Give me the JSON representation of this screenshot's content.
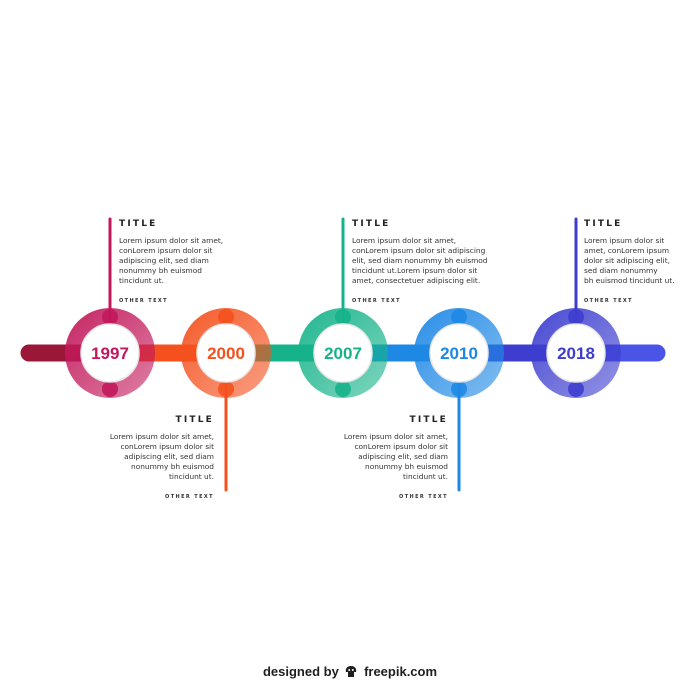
{
  "colors": {
    "step_1": "#c2185b",
    "step_2": "#f4511e",
    "step_3": "#16b38a",
    "step_4": "#1e88e5",
    "step_5": "#3d3ecf",
    "bar_left": "#9a1738",
    "bar_right": "#4a55e8"
  },
  "timeline": {
    "steps": [
      {
        "year": "1997",
        "title": "TITLE",
        "body": "Lorem ipsum dolor sit amet,\nconLorem ipsum dolor sit\nadipiscing elit, sed diam\nnonummy bh euismod\ntincidunt ut.",
        "other": "OTHER TEXT"
      },
      {
        "year": "2000",
        "title": "TITLE",
        "body": "Lorem ipsum dolor sit amet,\nconLorem ipsum dolor sit\nadipiscing elit, sed diam\nnonummy bh euismod\ntincidunt ut.",
        "other": "OTHER TEXT"
      },
      {
        "year": "2007",
        "title": "TITLE",
        "body": "Lorem ipsum dolor sit amet,\nconLorem ipsum dolor sit adipiscing\nelit, sed diam nonummy bh euismod\ntincidunt ut.Lorem ipsum dolor sit\namet, consectetuer adipiscing elit.",
        "other": "OTHER TEXT"
      },
      {
        "year": "2010",
        "title": "TITLE",
        "body": "Lorem ipsum dolor sit amet,\nconLorem ipsum dolor sit\nadipiscing elit, sed diam\nnonummy bh euismod\ntincidunt ut.",
        "other": "OTHER TEXT"
      },
      {
        "year": "2018",
        "title": "TITLE",
        "body": "Lorem ipsum dolor sit\namet, conLorem ipsum\ndolor sit adipiscing elit,\nsed diam nonummy\nbh euismod tincidunt ut.",
        "other": "OTHER TEXT"
      }
    ]
  },
  "credit": {
    "prefix": "designed by",
    "brand": "freepik.com",
    "logo_icon": "freepik-logo-icon"
  }
}
